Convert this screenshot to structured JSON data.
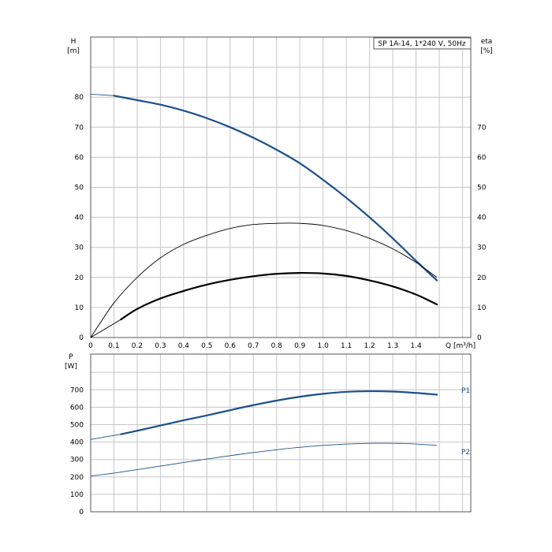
{
  "chart_data": [
    {
      "type": "line",
      "title": "SP 1A-14, 1*240 V, 50Hz",
      "xlabel": "Q [m³/h]",
      "ylabel": "H",
      "ylabel_unit": "[m]",
      "y2label": "eta",
      "y2label_unit": "[%]",
      "xlim": [
        0,
        1.6
      ],
      "ylim": [
        0,
        100
      ],
      "y2lim": [
        0,
        100
      ],
      "grid": true,
      "x_ticks": [
        "0",
        "0.1",
        "0.2",
        "0.3",
        "0.4",
        "0.5",
        "0.6",
        "0.7",
        "0.8",
        "0.9",
        "1.0",
        "1.1",
        "1.2",
        "1.3",
        "1.4"
      ],
      "y_ticks": [
        "0",
        "10",
        "20",
        "30",
        "40",
        "50",
        "60",
        "70",
        "80"
      ],
      "y2_ticks": [
        "0",
        "10",
        "20",
        "30",
        "40",
        "50",
        "60",
        "70"
      ],
      "series": [
        {
          "color": "#1a4f8b",
          "axis": "left",
          "x": [
            0,
            0.1,
            0.2,
            0.3,
            0.4,
            0.5,
            0.6,
            0.7,
            0.8,
            0.9,
            1.0,
            1.1,
            1.2,
            1.3,
            1.4,
            1.49
          ],
          "values": [
            81,
            80.5,
            79,
            77.5,
            75.5,
            73,
            70,
            66.5,
            62.5,
            58,
            52.5,
            46.5,
            40,
            33,
            25.5,
            19
          ],
          "thin_until": 0.1
        },
        {
          "color": "#000000",
          "axis": "right",
          "x": [
            0,
            0.1,
            0.2,
            0.3,
            0.4,
            0.5,
            0.6,
            0.7,
            0.8,
            0.9,
            1.0,
            1.1,
            1.2,
            1.3,
            1.4,
            1.49
          ],
          "values": [
            0,
            11.5,
            20,
            26.5,
            31,
            34,
            36.3,
            37.6,
            38,
            38,
            37.3,
            35.6,
            33,
            29.5,
            25,
            20
          ],
          "thin_until": 1.49
        },
        {
          "color": "#000000",
          "axis": "left",
          "x": [
            0,
            0.13,
            0.2,
            0.3,
            0.4,
            0.5,
            0.6,
            0.7,
            0.8,
            0.9,
            1.0,
            1.1,
            1.2,
            1.3,
            1.4,
            1.49
          ],
          "values": [
            0,
            6,
            9.5,
            13,
            15.5,
            17.6,
            19.2,
            20.4,
            21.2,
            21.5,
            21.3,
            20.5,
            19,
            17,
            14.3,
            11
          ],
          "thin_until": 0.13
        }
      ]
    },
    {
      "type": "line",
      "ylabel": "P",
      "ylabel_unit": "[W]",
      "xlim": [
        0,
        1.6
      ],
      "ylim": [
        0,
        800
      ],
      "grid": true,
      "y_ticks": [
        "0",
        "100",
        "200",
        "300",
        "400",
        "500",
        "600",
        "700"
      ],
      "series": [
        {
          "name": "P1",
          "color": "#1a4f8b",
          "x": [
            0,
            0.13,
            0.2,
            0.3,
            0.4,
            0.5,
            0.6,
            0.7,
            0.8,
            0.9,
            1.0,
            1.1,
            1.2,
            1.3,
            1.4,
            1.49
          ],
          "values": [
            415,
            445,
            465,
            495,
            525,
            553,
            583,
            612,
            638,
            660,
            677,
            688,
            692,
            690,
            682,
            672
          ],
          "thin_until": 0.13
        },
        {
          "name": "P2",
          "color": "#1a4f8b",
          "x": [
            0,
            0.1,
            0.2,
            0.3,
            0.4,
            0.5,
            0.6,
            0.7,
            0.8,
            0.9,
            1.0,
            1.1,
            1.2,
            1.3,
            1.4,
            1.49
          ],
          "values": [
            205,
            222,
            242,
            262,
            283,
            303,
            322,
            340,
            356,
            370,
            381,
            389,
            393,
            393,
            389,
            381
          ],
          "thin_until": 1.49
        }
      ]
    }
  ]
}
